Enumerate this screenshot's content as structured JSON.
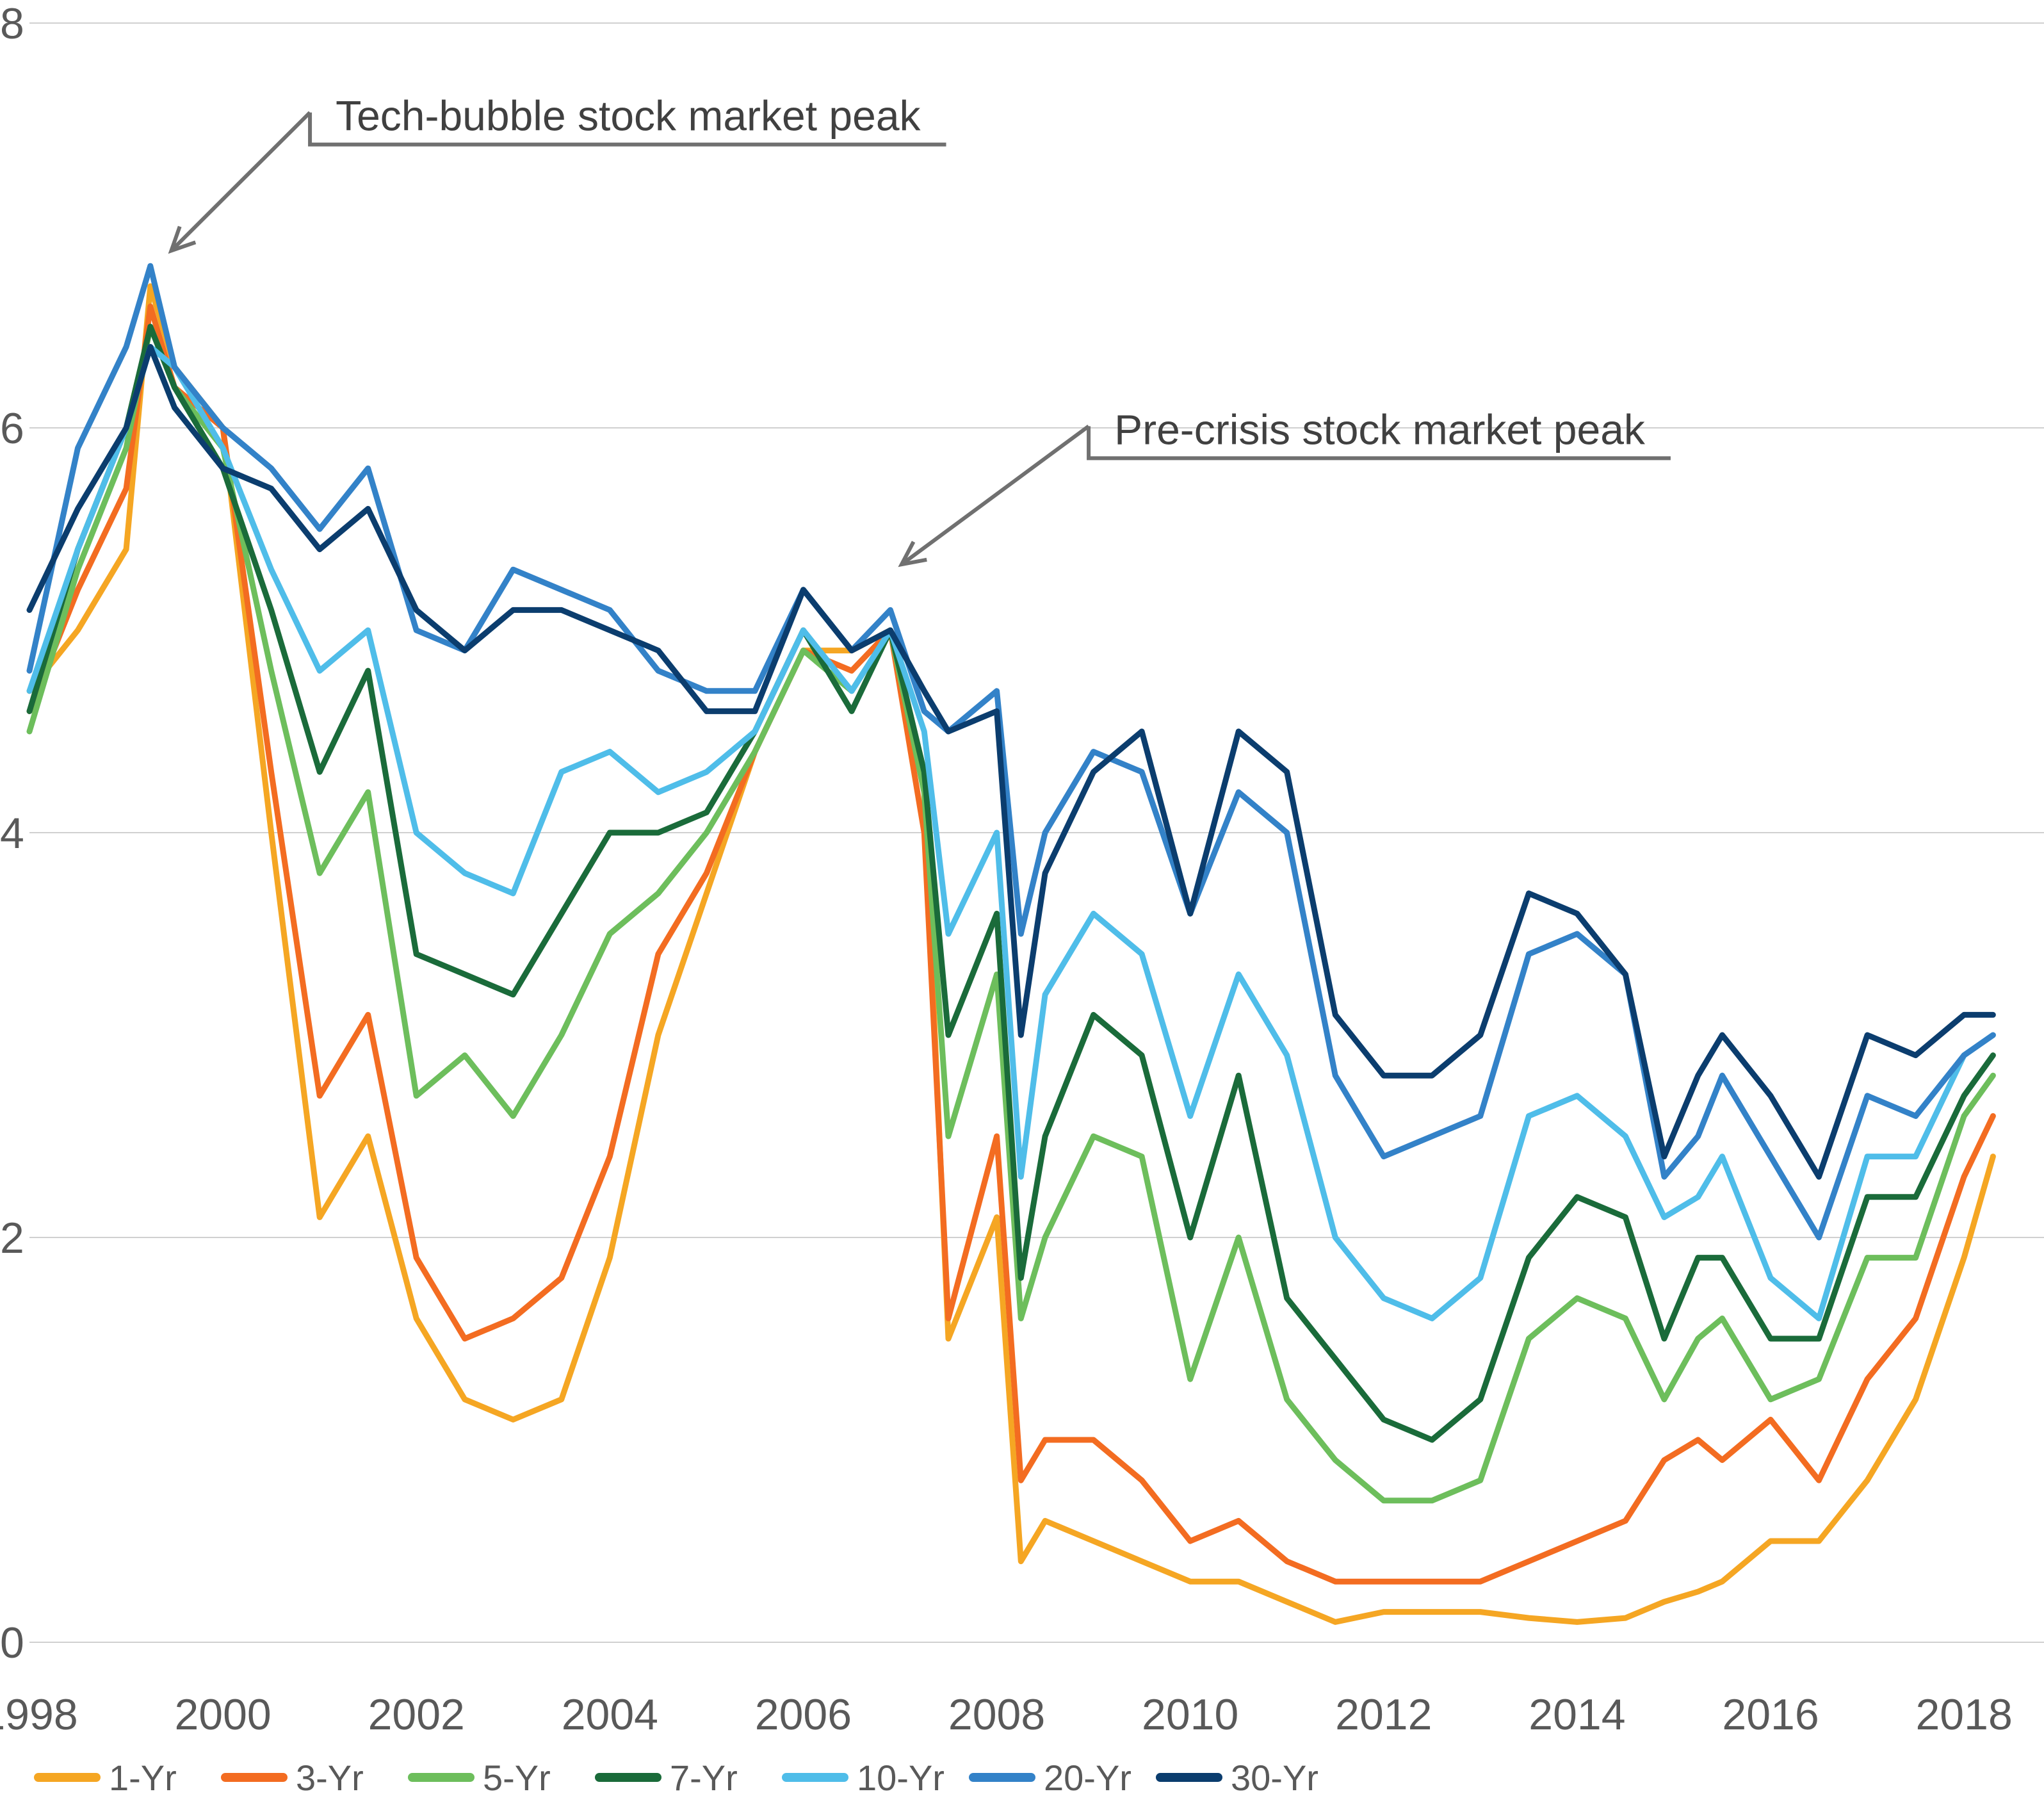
{
  "chart_data": {
    "type": "line",
    "title": "",
    "xlabel": "",
    "ylabel": "",
    "xlim": [
      1998,
      2018.35
    ],
    "ylim": [
      0,
      8
    ],
    "y_ticks": [
      {
        "value": 0,
        "label": "0"
      },
      {
        "value": 2,
        "label": "2"
      },
      {
        "value": 4,
        "label": "4"
      },
      {
        "value": 6,
        "label": "6"
      },
      {
        "value": 8,
        "label": "8"
      }
    ],
    "x_ticks": [
      {
        "value": 1998,
        "label": "1998"
      },
      {
        "value": 2000,
        "label": "2000"
      },
      {
        "value": 2002,
        "label": "2002"
      },
      {
        "value": 2004,
        "label": "2004"
      },
      {
        "value": 2006,
        "label": "2006"
      },
      {
        "value": 2008,
        "label": "2008"
      },
      {
        "value": 2010,
        "label": "2010"
      },
      {
        "value": 2012,
        "label": "2012"
      },
      {
        "value": 2014,
        "label": "2014"
      },
      {
        "value": 2016,
        "label": "2016"
      },
      {
        "value": 2018,
        "label": "2018"
      }
    ],
    "x": [
      1998.0,
      1998.5,
      1999.0,
      1999.25,
      1999.5,
      2000.0,
      2000.5,
      2001.0,
      2001.5,
      2002.0,
      2002.5,
      2003.0,
      2003.5,
      2004.0,
      2004.5,
      2005.0,
      2005.5,
      2006.0,
      2006.5,
      2006.9,
      2007.25,
      2007.5,
      2008.0,
      2008.25,
      2008.5,
      2009.0,
      2009.5,
      2010.0,
      2010.5,
      2011.0,
      2011.5,
      2012.0,
      2012.5,
      2013.0,
      2013.5,
      2014.0,
      2014.5,
      2014.9,
      2015.25,
      2015.5,
      2016.0,
      2016.5,
      2017.0,
      2017.5,
      2018.0,
      2018.3
    ],
    "series": [
      {
        "name": "1-Yr",
        "color": "#f5a623",
        "values": [
          4.7,
          5.0,
          5.4,
          6.7,
          6.3,
          6.0,
          4.0,
          2.1,
          2.5,
          1.6,
          1.2,
          1.1,
          1.2,
          1.9,
          3.0,
          3.7,
          4.4,
          4.9,
          4.9,
          5.0,
          4.2,
          1.5,
          2.1,
          0.4,
          0.6,
          0.5,
          0.4,
          0.3,
          0.3,
          0.2,
          0.1,
          0.15,
          0.15,
          0.15,
          0.12,
          0.1,
          0.12,
          0.2,
          0.25,
          0.3,
          0.5,
          0.5,
          0.8,
          1.2,
          1.9,
          2.4
        ]
      },
      {
        "name": "3-Yr",
        "color": "#f36c21",
        "values": [
          4.6,
          5.2,
          5.7,
          6.6,
          6.2,
          6.0,
          4.3,
          2.7,
          3.1,
          1.9,
          1.5,
          1.6,
          1.8,
          2.4,
          3.4,
          3.8,
          4.4,
          4.9,
          4.8,
          5.0,
          4.0,
          1.6,
          2.5,
          0.8,
          1.0,
          1.0,
          0.8,
          0.5,
          0.6,
          0.4,
          0.3,
          0.3,
          0.3,
          0.3,
          0.4,
          0.5,
          0.6,
          0.9,
          1.0,
          0.9,
          1.1,
          0.8,
          1.3,
          1.6,
          2.3,
          2.6
        ]
      },
      {
        "name": "5-Yr",
        "color": "#6dbe5c",
        "values": [
          4.5,
          5.3,
          5.9,
          6.5,
          6.2,
          5.9,
          4.8,
          3.8,
          4.2,
          2.7,
          2.9,
          2.6,
          3.0,
          3.5,
          3.7,
          4.0,
          4.4,
          4.9,
          4.7,
          5.0,
          4.2,
          2.5,
          3.3,
          1.6,
          2.0,
          2.5,
          2.4,
          1.3,
          2.0,
          1.2,
          0.9,
          0.7,
          0.7,
          0.8,
          1.5,
          1.7,
          1.6,
          1.2,
          1.5,
          1.6,
          1.2,
          1.3,
          1.9,
          1.9,
          2.6,
          2.8
        ]
      },
      {
        "name": "7-Yr",
        "color": "#1a6b3a",
        "values": [
          4.6,
          5.4,
          6.0,
          6.5,
          6.2,
          5.8,
          5.1,
          4.3,
          4.8,
          3.4,
          3.3,
          3.2,
          3.6,
          4.0,
          4.0,
          4.1,
          4.5,
          5.0,
          4.6,
          5.0,
          4.3,
          3.0,
          3.6,
          1.8,
          2.5,
          3.1,
          2.9,
          2.0,
          2.8,
          1.7,
          1.4,
          1.1,
          1.0,
          1.2,
          1.9,
          2.2,
          2.1,
          1.5,
          1.9,
          1.9,
          1.5,
          1.5,
          2.2,
          2.2,
          2.7,
          2.9
        ]
      },
      {
        "name": "10-Yr",
        "color": "#4fbde9",
        "values": [
          4.7,
          5.4,
          6.0,
          6.4,
          6.3,
          5.9,
          5.3,
          4.8,
          5.0,
          4.0,
          3.8,
          3.7,
          4.3,
          4.4,
          4.2,
          4.3,
          4.5,
          5.0,
          4.7,
          5.0,
          4.5,
          3.5,
          4.0,
          2.3,
          3.2,
          3.6,
          3.4,
          2.6,
          3.3,
          2.9,
          2.0,
          1.7,
          1.6,
          1.8,
          2.6,
          2.7,
          2.5,
          2.1,
          2.2,
          2.4,
          1.8,
          1.6,
          2.4,
          2.4,
          2.9,
          3.0
        ]
      },
      {
        "name": "20-Yr",
        "color": "#3382c8",
        "values": [
          4.8,
          5.9,
          6.4,
          6.8,
          6.3,
          6.0,
          5.8,
          5.5,
          5.8,
          5.0,
          4.9,
          5.3,
          5.2,
          5.1,
          4.8,
          4.7,
          4.7,
          5.2,
          4.9,
          5.1,
          4.6,
          4.5,
          4.7,
          3.5,
          4.0,
          4.4,
          4.3,
          3.6,
          4.2,
          4.0,
          2.8,
          2.4,
          2.5,
          2.6,
          3.4,
          3.5,
          3.3,
          2.3,
          2.5,
          2.8,
          2.4,
          2.0,
          2.7,
          2.6,
          2.9,
          3.0
        ]
      },
      {
        "name": "30-Yr",
        "color": "#0b3d6e",
        "values": [
          5.1,
          5.6,
          6.0,
          6.4,
          6.1,
          5.8,
          5.7,
          5.4,
          5.6,
          5.1,
          4.9,
          5.1,
          5.1,
          5.0,
          4.9,
          4.6,
          4.6,
          5.2,
          4.9,
          5.0,
          4.7,
          4.5,
          4.6,
          3.0,
          3.8,
          4.3,
          4.5,
          3.6,
          4.5,
          4.3,
          3.1,
          2.8,
          2.8,
          3.0,
          3.7,
          3.6,
          3.3,
          2.4,
          2.8,
          3.0,
          2.7,
          2.3,
          3.0,
          2.9,
          3.1,
          3.1
        ]
      }
    ],
    "annotations": [
      {
        "text": "Tech-bubble stock market peak",
        "x": 1999.4,
        "y": 6.85,
        "label_x": 2000.9,
        "label_y": 7.4
      },
      {
        "text": "Pre-crisis stock market peak",
        "x": 2006.95,
        "y": 5.3,
        "label_x": 2008.95,
        "label_y": 5.85
      }
    ],
    "legend_position": "bottom"
  }
}
